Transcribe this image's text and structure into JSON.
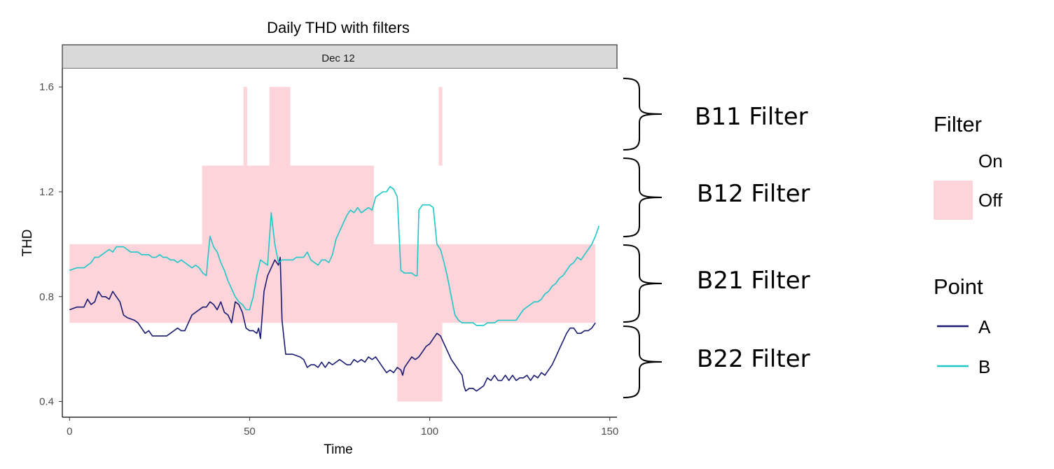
{
  "chart_data": {
    "type": "line",
    "title": "Daily THD   with filters",
    "facet": "Dec 12",
    "xlabel": "Time",
    "ylabel": "THD",
    "xlim": [
      -2,
      152
    ],
    "ylim": [
      0.34,
      1.67
    ],
    "x_ticks": [
      0,
      50,
      100,
      150
    ],
    "y_ticks": [
      0.4,
      0.8,
      1.2,
      1.6
    ],
    "y_tick_labels": [
      "0.4",
      "0.8",
      "1.2",
      "1.6"
    ],
    "grid": false,
    "off_regions": [
      {
        "filter": "B11",
        "x0": 48.3,
        "x1": 49.3,
        "y0": 1.3,
        "y1": 1.6
      },
      {
        "filter": "B11",
        "x0": 55.5,
        "x1": 61.3,
        "y0": 1.3,
        "y1": 1.6
      },
      {
        "filter": "B11",
        "x0": 102.5,
        "x1": 103.5,
        "y0": 1.3,
        "y1": 1.6
      },
      {
        "filter": "B12",
        "x0": 36.8,
        "x1": 84.5,
        "y0": 1.0,
        "y1": 1.3
      },
      {
        "filter": "B21",
        "x0": 0,
        "x1": 146,
        "y0": 0.7,
        "y1": 1.0
      },
      {
        "filter": "B22",
        "x0": 91,
        "x1": 103.5,
        "y0": 0.4,
        "y1": 0.7
      }
    ],
    "bracket_labels": [
      "B11 Filter",
      "B12 Filter",
      "B21 Filter",
      "B22 Filter"
    ],
    "series": [
      {
        "name": "A",
        "color": "#191970",
        "points": [
          [
            0,
            0.75
          ],
          [
            2,
            0.76
          ],
          [
            4,
            0.76
          ],
          [
            5,
            0.79
          ],
          [
            6,
            0.77
          ],
          [
            7,
            0.78
          ],
          [
            8,
            0.82
          ],
          [
            9,
            0.8
          ],
          [
            10,
            0.8
          ],
          [
            11,
            0.79
          ],
          [
            12,
            0.82
          ],
          [
            13,
            0.8
          ],
          [
            14,
            0.78
          ],
          [
            15,
            0.73
          ],
          [
            16,
            0.72
          ],
          [
            18,
            0.71
          ],
          [
            19,
            0.7
          ],
          [
            20,
            0.68
          ],
          [
            21,
            0.66
          ],
          [
            22,
            0.67
          ],
          [
            23,
            0.65
          ],
          [
            25,
            0.65
          ],
          [
            27,
            0.65
          ],
          [
            28,
            0.66
          ],
          [
            29,
            0.67
          ],
          [
            30,
            0.68
          ],
          [
            31,
            0.67
          ],
          [
            32,
            0.67
          ],
          [
            33,
            0.7
          ],
          [
            34,
            0.73
          ],
          [
            36,
            0.75
          ],
          [
            37,
            0.76
          ],
          [
            38,
            0.76
          ],
          [
            39,
            0.78
          ],
          [
            40,
            0.77
          ],
          [
            41,
            0.75
          ],
          [
            42,
            0.78
          ],
          [
            43,
            0.74
          ],
          [
            44,
            0.73
          ],
          [
            45,
            0.7
          ],
          [
            46,
            0.78
          ],
          [
            47,
            0.77
          ],
          [
            48,
            0.74
          ],
          [
            49,
            0.68
          ],
          [
            50,
            0.67
          ],
          [
            51,
            0.67
          ],
          [
            52,
            0.66
          ],
          [
            52.5,
            0.68
          ],
          [
            53,
            0.64
          ],
          [
            54,
            0.82
          ],
          [
            55,
            0.88
          ],
          [
            56,
            0.91
          ],
          [
            57,
            0.94
          ],
          [
            58,
            0.92
          ],
          [
            58.5,
            0.95
          ],
          [
            59,
            0.71
          ],
          [
            60,
            0.58
          ],
          [
            61,
            0.58
          ],
          [
            62,
            0.58
          ],
          [
            64,
            0.57
          ],
          [
            65,
            0.56
          ],
          [
            66,
            0.53
          ],
          [
            67,
            0.54
          ],
          [
            68,
            0.54
          ],
          [
            69,
            0.53
          ],
          [
            70,
            0.55
          ],
          [
            71,
            0.53
          ],
          [
            72,
            0.55
          ],
          [
            73,
            0.54
          ],
          [
            74,
            0.55
          ],
          [
            75,
            0.56
          ],
          [
            76,
            0.55
          ],
          [
            77,
            0.54
          ],
          [
            78,
            0.54
          ],
          [
            79,
            0.56
          ],
          [
            80,
            0.55
          ],
          [
            81,
            0.56
          ],
          [
            82,
            0.55
          ],
          [
            83,
            0.57
          ],
          [
            84,
            0.56
          ],
          [
            85,
            0.57
          ],
          [
            86,
            0.55
          ],
          [
            87,
            0.53
          ],
          [
            88,
            0.51
          ],
          [
            89,
            0.52
          ],
          [
            90,
            0.51
          ],
          [
            91,
            0.53
          ],
          [
            92,
            0.52
          ],
          [
            92.5,
            0.5
          ],
          [
            93,
            0.53
          ],
          [
            94,
            0.55
          ],
          [
            95,
            0.57
          ],
          [
            96,
            0.56
          ],
          [
            97,
            0.57
          ],
          [
            98,
            0.59
          ],
          [
            99,
            0.61
          ],
          [
            100,
            0.62
          ],
          [
            101,
            0.64
          ],
          [
            102,
            0.66
          ],
          [
            103,
            0.65
          ],
          [
            104,
            0.62
          ],
          [
            105,
            0.59
          ],
          [
            106,
            0.56
          ],
          [
            107,
            0.54
          ],
          [
            108,
            0.52
          ],
          [
            109,
            0.5
          ],
          [
            109.5,
            0.46
          ],
          [
            110,
            0.44
          ],
          [
            111,
            0.45
          ],
          [
            112,
            0.45
          ],
          [
            113,
            0.44
          ],
          [
            114,
            0.45
          ],
          [
            115,
            0.46
          ],
          [
            116,
            0.49
          ],
          [
            117,
            0.48
          ],
          [
            118,
            0.5
          ],
          [
            119,
            0.48
          ],
          [
            120,
            0.48
          ],
          [
            121,
            0.5
          ],
          [
            122,
            0.48
          ],
          [
            123,
            0.5
          ],
          [
            124,
            0.48
          ],
          [
            125,
            0.49
          ],
          [
            126,
            0.49
          ],
          [
            127,
            0.5
          ],
          [
            128,
            0.48
          ],
          [
            129,
            0.5
          ],
          [
            130,
            0.49
          ],
          [
            131,
            0.51
          ],
          [
            132,
            0.5
          ],
          [
            133,
            0.52
          ],
          [
            134,
            0.54
          ],
          [
            135,
            0.57
          ],
          [
            136,
            0.6
          ],
          [
            137,
            0.63
          ],
          [
            138,
            0.66
          ],
          [
            139,
            0.68
          ],
          [
            140,
            0.68
          ],
          [
            141,
            0.66
          ],
          [
            142,
            0.66
          ],
          [
            143,
            0.67
          ],
          [
            144,
            0.67
          ],
          [
            145,
            0.68
          ],
          [
            146,
            0.7
          ]
        ]
      },
      {
        "name": "B",
        "color": "#1fc7c7",
        "points": [
          [
            0,
            0.9
          ],
          [
            2,
            0.91
          ],
          [
            4,
            0.91
          ],
          [
            5,
            0.92
          ],
          [
            6,
            0.93
          ],
          [
            7,
            0.95
          ],
          [
            8,
            0.95
          ],
          [
            9,
            0.96
          ],
          [
            10,
            0.97
          ],
          [
            11,
            0.98
          ],
          [
            12,
            0.97
          ],
          [
            13,
            0.99
          ],
          [
            14,
            0.99
          ],
          [
            15,
            0.99
          ],
          [
            16,
            0.98
          ],
          [
            17,
            0.97
          ],
          [
            18,
            0.97
          ],
          [
            19,
            0.97
          ],
          [
            20,
            0.96
          ],
          [
            21,
            0.96
          ],
          [
            22,
            0.96
          ],
          [
            23,
            0.95
          ],
          [
            24,
            0.95
          ],
          [
            25,
            0.96
          ],
          [
            26,
            0.95
          ],
          [
            27,
            0.95
          ],
          [
            28,
            0.94
          ],
          [
            29,
            0.94
          ],
          [
            30,
            0.93
          ],
          [
            31,
            0.94
          ],
          [
            32,
            0.93
          ],
          [
            33,
            0.92
          ],
          [
            34,
            0.91
          ],
          [
            35,
            0.92
          ],
          [
            36,
            0.91
          ],
          [
            37,
            0.89
          ],
          [
            38,
            0.88
          ],
          [
            38.5,
            0.96
          ],
          [
            39,
            1.03
          ],
          [
            40,
            0.99
          ],
          [
            41,
            0.97
          ],
          [
            42,
            0.93
          ],
          [
            43,
            0.9
          ],
          [
            44,
            0.86
          ],
          [
            45,
            0.83
          ],
          [
            46,
            0.8
          ],
          [
            47,
            0.78
          ],
          [
            48,
            0.77
          ],
          [
            49,
            0.75
          ],
          [
            50,
            0.75
          ],
          [
            51,
            0.8
          ],
          [
            52,
            0.88
          ],
          [
            53,
            0.94
          ],
          [
            54,
            0.93
          ],
          [
            55,
            0.92
          ],
          [
            56,
            1.12
          ],
          [
            57,
            1.0
          ],
          [
            58,
            0.93
          ],
          [
            59,
            0.94
          ],
          [
            60,
            0.94
          ],
          [
            61,
            0.94
          ],
          [
            62,
            0.94
          ],
          [
            63,
            0.95
          ],
          [
            64,
            0.95
          ],
          [
            65,
            0.95
          ],
          [
            66,
            0.97
          ],
          [
            67,
            0.94
          ],
          [
            68,
            0.93
          ],
          [
            69,
            0.92
          ],
          [
            70,
            0.94
          ],
          [
            71,
            0.94
          ],
          [
            72,
            0.93
          ],
          [
            73,
            0.96
          ],
          [
            74,
            1.02
          ],
          [
            75,
            1.05
          ],
          [
            76,
            1.08
          ],
          [
            77,
            1.11
          ],
          [
            78,
            1.13
          ],
          [
            79,
            1.12
          ],
          [
            80,
            1.14
          ],
          [
            81,
            1.12
          ],
          [
            82,
            1.13
          ],
          [
            83,
            1.14
          ],
          [
            84,
            1.13
          ],
          [
            85,
            1.18
          ],
          [
            86,
            1.19
          ],
          [
            87,
            1.2
          ],
          [
            88,
            1.2
          ],
          [
            89,
            1.22
          ],
          [
            90,
            1.21
          ],
          [
            91,
            1.18
          ],
          [
            92,
            0.9
          ],
          [
            93,
            0.89
          ],
          [
            94,
            0.89
          ],
          [
            95,
            0.89
          ],
          [
            96,
            0.88
          ],
          [
            96.5,
            0.88
          ],
          [
            97,
            1.13
          ],
          [
            98,
            1.15
          ],
          [
            99,
            1.15
          ],
          [
            100,
            1.15
          ],
          [
            101,
            1.14
          ],
          [
            102,
            1.0
          ],
          [
            103,
            0.98
          ],
          [
            104,
            0.93
          ],
          [
            105,
            0.87
          ],
          [
            106,
            0.8
          ],
          [
            107,
            0.73
          ],
          [
            108,
            0.71
          ],
          [
            109,
            0.7
          ],
          [
            110,
            0.7
          ],
          [
            111,
            0.7
          ],
          [
            112,
            0.7
          ],
          [
            113,
            0.69
          ],
          [
            114,
            0.69
          ],
          [
            115,
            0.69
          ],
          [
            116,
            0.7
          ],
          [
            117,
            0.7
          ],
          [
            118,
            0.7
          ],
          [
            119,
            0.71
          ],
          [
            120,
            0.71
          ],
          [
            121,
            0.71
          ],
          [
            122,
            0.71
          ],
          [
            123,
            0.71
          ],
          [
            124,
            0.71
          ],
          [
            125,
            0.73
          ],
          [
            126,
            0.75
          ],
          [
            127,
            0.76
          ],
          [
            128,
            0.77
          ],
          [
            129,
            0.78
          ],
          [
            130,
            0.78
          ],
          [
            131,
            0.79
          ],
          [
            132,
            0.81
          ],
          [
            133,
            0.82
          ],
          [
            134,
            0.84
          ],
          [
            135,
            0.85
          ],
          [
            136,
            0.87
          ],
          [
            137,
            0.88
          ],
          [
            138,
            0.9
          ],
          [
            139,
            0.92
          ],
          [
            140,
            0.93
          ],
          [
            141,
            0.95
          ],
          [
            142,
            0.94
          ],
          [
            143,
            0.96
          ],
          [
            144,
            0.98
          ],
          [
            145,
            1.0
          ],
          [
            146,
            1.03
          ],
          [
            147,
            1.07
          ]
        ]
      }
    ],
    "legend": {
      "placement": "right",
      "fill_title": "Filter",
      "fill_items": [
        {
          "label": "On",
          "color": "#ffffff"
        },
        {
          "label": "Off",
          "color": "#fcd4d9"
        }
      ],
      "line_title": "Point",
      "line_items": [
        {
          "label": "A",
          "color": "#191970"
        },
        {
          "label": "B",
          "color": "#1fc7c7"
        }
      ]
    },
    "off_color": "#fcd4d9"
  }
}
